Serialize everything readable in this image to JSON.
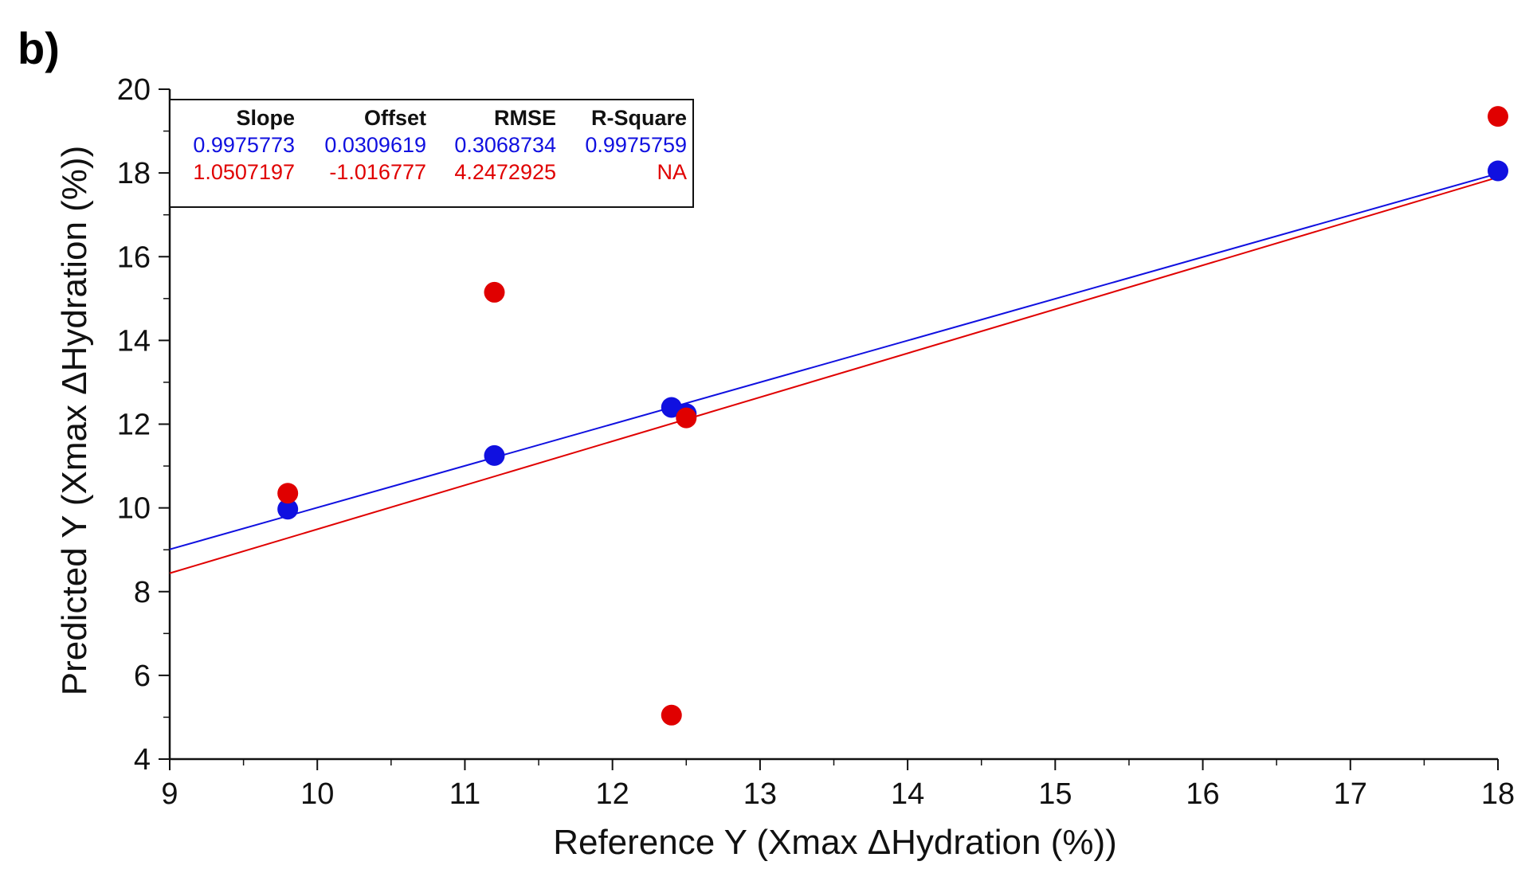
{
  "panel_label": "b)",
  "colors": {
    "blue": "#1010e0",
    "red": "#e00000",
    "axis": "#111111"
  },
  "chart_data": {
    "type": "scatter",
    "xlabel": "Reference Y (Xmax ΔHydration (%))",
    "ylabel": "Predicted Y (Xmax ΔHydration (%))",
    "xlim": [
      9,
      18
    ],
    "ylim": [
      4,
      20
    ],
    "x_ticks": [
      9,
      10,
      11,
      12,
      13,
      14,
      15,
      16,
      17,
      18
    ],
    "y_ticks": [
      4,
      6,
      8,
      10,
      12,
      14,
      16,
      18,
      20
    ],
    "x_tick_labels": [
      "9",
      "10",
      "11",
      "12",
      "13",
      "14",
      "15",
      "16",
      "17",
      "18"
    ],
    "y_tick_labels": [
      "4",
      "6",
      "8",
      "10",
      "12",
      "14",
      "16",
      "18",
      "20"
    ],
    "series": [
      {
        "name": "blue",
        "color": "#1010e0",
        "points": [
          [
            9.8,
            9.97
          ],
          [
            11.2,
            11.25
          ],
          [
            12.4,
            12.4
          ],
          [
            12.5,
            12.25
          ],
          [
            18.0,
            18.05
          ]
        ],
        "fit": {
          "slope": 0.9975773,
          "offset": 0.0309619
        }
      },
      {
        "name": "red",
        "color": "#e00000",
        "points": [
          [
            9.8,
            10.35
          ],
          [
            11.2,
            15.15
          ],
          [
            12.4,
            5.05
          ],
          [
            12.5,
            12.15
          ],
          [
            18.0,
            19.35
          ]
        ],
        "fit": {
          "slope": 1.0507197,
          "offset": -1.016777
        }
      }
    ],
    "legend": {
      "position": "top-left",
      "headers": [
        "Slope",
        "Offset",
        "RMSE",
        "R-Square"
      ],
      "rows": [
        {
          "series": "blue",
          "values": [
            "0.9975773",
            "0.0309619",
            "0.3068734",
            "0.9975759"
          ]
        },
        {
          "series": "red",
          "values": [
            "1.0507197",
            "-1.016777",
            "4.2472925",
            "NA"
          ]
        }
      ]
    }
  }
}
